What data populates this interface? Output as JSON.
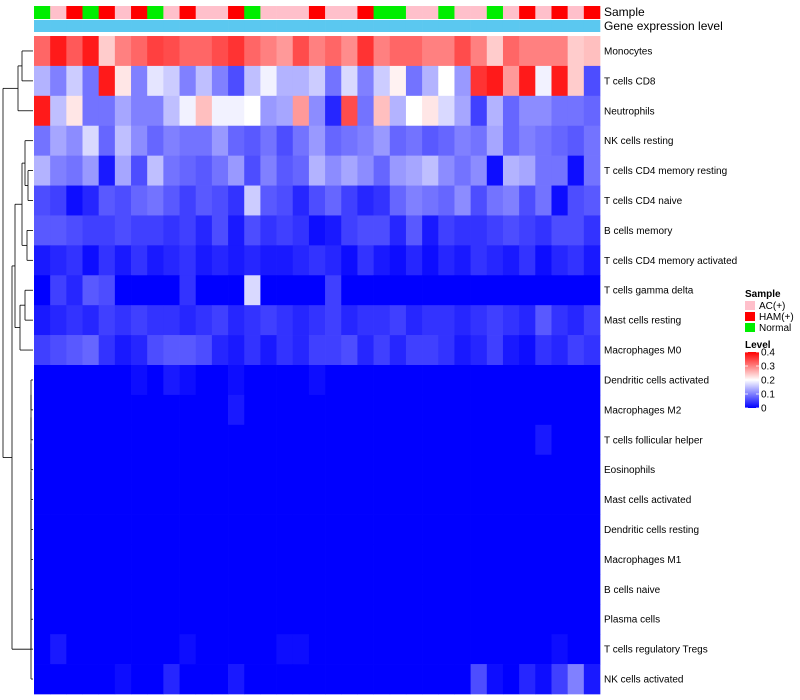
{
  "chart_data": {
    "type": "heatmap",
    "title": "",
    "column_annotations": {
      "sample_label": "Sample",
      "expression_label": "Gene expression level",
      "samples": [
        "Normal",
        "AC(+)",
        "HAM(+)",
        "Normal",
        "HAM(+)",
        "AC(+)",
        "HAM(+)",
        "Normal",
        "AC(+)",
        "HAM(+)",
        "AC(+)",
        "AC(+)",
        "HAM(+)",
        "Normal",
        "AC(+)",
        "AC(+)",
        "AC(+)",
        "HAM(+)",
        "AC(+)",
        "AC(+)",
        "HAM(+)",
        "Normal",
        "Normal",
        "AC(+)",
        "AC(+)",
        "Normal",
        "AC(+)",
        "AC(+)",
        "Normal",
        "AC(+)",
        "HAM(+)",
        "AC(+)",
        "HAM(+)",
        "AC(+)",
        "HAM(+)"
      ],
      "expression_color": "#5BC8F0"
    },
    "rows": [
      "Monocytes",
      "T cells CD8",
      "Neutrophils",
      "NK cells resting",
      "T cells CD4 memory resting",
      "T cells CD4 naive",
      "B cells memory",
      "T cells CD4 memory activated",
      "T cells gamma delta",
      "Mast cells resting",
      "Macrophages M0",
      "Dendritic cells activated",
      "Macrophages M2",
      "T cells follicular helper",
      "Eosinophils",
      "Mast cells activated",
      "Dendritic cells resting",
      "Macrophages M1",
      "B cells naive",
      "Plasma cells",
      "T cells regulatory  Tregs",
      "NK cells activated"
    ],
    "values": [
      [
        0.32,
        0.38,
        0.33,
        0.38,
        0.24,
        0.3,
        0.32,
        0.35,
        0.34,
        0.32,
        0.32,
        0.34,
        0.36,
        0.32,
        0.3,
        0.28,
        0.34,
        0.3,
        0.32,
        0.29,
        0.36,
        0.3,
        0.32,
        0.32,
        0.3,
        0.3,
        0.34,
        0.3,
        0.24,
        0.32,
        0.3,
        0.3,
        0.3,
        0.24,
        0.25
      ],
      [
        0.14,
        0.1,
        0.16,
        0.09,
        0.38,
        0.22,
        0.1,
        0.18,
        0.16,
        0.1,
        0.15,
        0.1,
        0.06,
        0.15,
        0.19,
        0.14,
        0.14,
        0.16,
        0.09,
        0.17,
        0.1,
        0.16,
        0.21,
        0.09,
        0.14,
        0.2,
        0.12,
        0.36,
        0.38,
        0.28,
        0.38,
        0.19,
        0.38,
        0.24,
        0.06
      ],
      [
        0.38,
        0.15,
        0.22,
        0.09,
        0.09,
        0.13,
        0.1,
        0.1,
        0.15,
        0.19,
        0.25,
        0.19,
        0.19,
        0.2,
        0.12,
        0.13,
        0.28,
        0.11,
        0.03,
        0.34,
        0.09,
        0.25,
        0.14,
        0.2,
        0.22,
        0.17,
        0.13,
        0.05,
        0.14,
        0.08,
        0.11,
        0.11,
        0.09,
        0.09,
        0.08
      ],
      [
        0.09,
        0.13,
        0.11,
        0.17,
        0.08,
        0.15,
        0.11,
        0.08,
        0.1,
        0.09,
        0.09,
        0.12,
        0.08,
        0.07,
        0.09,
        0.06,
        0.09,
        0.12,
        0.08,
        0.09,
        0.1,
        0.12,
        0.08,
        0.09,
        0.07,
        0.08,
        0.1,
        0.09,
        0.13,
        0.08,
        0.1,
        0.09,
        0.08,
        0.07,
        0.09
      ],
      [
        0.14,
        0.1,
        0.09,
        0.12,
        0.02,
        0.13,
        0.06,
        0.15,
        0.09,
        0.08,
        0.07,
        0.09,
        0.12,
        0.06,
        0.1,
        0.07,
        0.08,
        0.14,
        0.11,
        0.13,
        0.11,
        0.08,
        0.12,
        0.13,
        0.15,
        0.11,
        0.09,
        0.11,
        0.01,
        0.14,
        0.13,
        0.09,
        0.09,
        0.01,
        0.09
      ],
      [
        0.06,
        0.05,
        0.01,
        0.03,
        0.07,
        0.06,
        0.08,
        0.09,
        0.07,
        0.05,
        0.07,
        0.06,
        0.04,
        0.16,
        0.07,
        0.06,
        0.03,
        0.06,
        0.08,
        0.05,
        0.03,
        0.04,
        0.08,
        0.1,
        0.09,
        0.08,
        0.11,
        0.06,
        0.09,
        0.1,
        0.06,
        0.09,
        0.01,
        0.06,
        0.07
      ],
      [
        0.07,
        0.07,
        0.06,
        0.05,
        0.05,
        0.06,
        0.05,
        0.05,
        0.04,
        0.05,
        0.03,
        0.06,
        0.02,
        0.06,
        0.04,
        0.05,
        0.04,
        0.01,
        0.02,
        0.05,
        0.06,
        0.06,
        0.03,
        0.07,
        0.02,
        0.05,
        0.04,
        0.04,
        0.05,
        0.06,
        0.05,
        0.04,
        0.06,
        0.06,
        0.04
      ],
      [
        0.02,
        0.03,
        0.04,
        0.01,
        0.04,
        0.02,
        0.04,
        0.02,
        0.03,
        0.04,
        0.02,
        0.03,
        0.02,
        0.03,
        0.02,
        0.02,
        0.03,
        0.04,
        0.03,
        0.01,
        0.04,
        0.02,
        0.01,
        0.03,
        0.01,
        0.03,
        0.02,
        0.04,
        0.03,
        0.02,
        0.04,
        0.01,
        0.03,
        0.04,
        0.02
      ],
      [
        0.0,
        0.05,
        0.03,
        0.07,
        0.06,
        0.0,
        0.0,
        0.0,
        0.0,
        0.04,
        0.0,
        0.0,
        0.0,
        0.17,
        0.0,
        0.0,
        0.0,
        0.0,
        0.05,
        0.0,
        0.0,
        0.0,
        0.0,
        0.0,
        0.0,
        0.0,
        0.0,
        0.0,
        0.0,
        0.0,
        0.0,
        0.0,
        0.0,
        0.0,
        0.0
      ],
      [
        0.02,
        0.03,
        0.04,
        0.03,
        0.05,
        0.04,
        0.05,
        0.04,
        0.04,
        0.03,
        0.04,
        0.05,
        0.03,
        0.04,
        0.05,
        0.04,
        0.03,
        0.04,
        0.05,
        0.03,
        0.04,
        0.04,
        0.05,
        0.03,
        0.04,
        0.04,
        0.03,
        0.04,
        0.05,
        0.04,
        0.03,
        0.07,
        0.04,
        0.03,
        0.05
      ],
      [
        0.05,
        0.06,
        0.07,
        0.08,
        0.04,
        0.02,
        0.03,
        0.06,
        0.07,
        0.07,
        0.06,
        0.03,
        0.02,
        0.04,
        0.02,
        0.04,
        0.03,
        0.05,
        0.05,
        0.06,
        0.03,
        0.05,
        0.03,
        0.05,
        0.05,
        0.04,
        0.02,
        0.03,
        0.05,
        0.02,
        0.01,
        0.04,
        0.03,
        0.05,
        0.04
      ],
      [
        0.0,
        0.0,
        0.0,
        0.0,
        0.0,
        0.0,
        0.01,
        0.0,
        0.02,
        0.01,
        0.0,
        0.0,
        0.01,
        0.0,
        0.0,
        0.0,
        0.0,
        0.01,
        0.0,
        0.0,
        0.0,
        0.0,
        0.0,
        0.0,
        0.0,
        0.0,
        0.0,
        0.0,
        0.0,
        0.0,
        0.0,
        0.0,
        0.0,
        0.0,
        0.0
      ],
      [
        0.0,
        0.0,
        0.0,
        0.0,
        0.0,
        0.0,
        0.0,
        0.0,
        0.0,
        0.0,
        0.0,
        0.0,
        0.02,
        0.0,
        0.0,
        0.0,
        0.0,
        0.0,
        0.0,
        0.0,
        0.0,
        0.0,
        0.0,
        0.0,
        0.0,
        0.0,
        0.0,
        0.0,
        0.0,
        0.0,
        0.0,
        0.0,
        0.0,
        0.0,
        0.0
      ],
      [
        0.0,
        0.0,
        0.0,
        0.0,
        0.0,
        0.0,
        0.0,
        0.0,
        0.0,
        0.0,
        0.0,
        0.0,
        0.0,
        0.0,
        0.0,
        0.0,
        0.0,
        0.0,
        0.0,
        0.0,
        0.0,
        0.0,
        0.0,
        0.0,
        0.0,
        0.0,
        0.0,
        0.0,
        0.0,
        0.0,
        0.0,
        0.02,
        0.0,
        0.0,
        0.0
      ],
      [
        0.0,
        0.0,
        0.0,
        0.0,
        0.0,
        0.0,
        0.0,
        0.0,
        0.0,
        0.0,
        0.0,
        0.0,
        0.0,
        0.0,
        0.0,
        0.0,
        0.0,
        0.0,
        0.0,
        0.0,
        0.0,
        0.0,
        0.0,
        0.0,
        0.0,
        0.0,
        0.0,
        0.0,
        0.0,
        0.0,
        0.0,
        0.0,
        0.0,
        0.0,
        0.0
      ],
      [
        0.0,
        0.0,
        0.0,
        0.0,
        0.0,
        0.0,
        0.0,
        0.0,
        0.0,
        0.0,
        0.0,
        0.0,
        0.0,
        0.0,
        0.0,
        0.0,
        0.0,
        0.0,
        0.0,
        0.0,
        0.0,
        0.0,
        0.0,
        0.0,
        0.0,
        0.0,
        0.0,
        0.0,
        0.0,
        0.0,
        0.0,
        0.0,
        0.0,
        0.0,
        0.0
      ],
      [
        0.0,
        0.0,
        0.0,
        0.0,
        0.0,
        0.0,
        0.0,
        0.0,
        0.0,
        0.0,
        0.0,
        0.0,
        0.0,
        0.0,
        0.0,
        0.0,
        0.0,
        0.0,
        0.0,
        0.0,
        0.0,
        0.0,
        0.0,
        0.0,
        0.0,
        0.0,
        0.0,
        0.0,
        0.0,
        0.0,
        0.0,
        0.0,
        0.0,
        0.0,
        0.0
      ],
      [
        0.0,
        0.0,
        0.0,
        0.0,
        0.0,
        0.0,
        0.0,
        0.0,
        0.0,
        0.0,
        0.0,
        0.0,
        0.0,
        0.0,
        0.0,
        0.0,
        0.0,
        0.0,
        0.0,
        0.0,
        0.0,
        0.0,
        0.0,
        0.0,
        0.0,
        0.0,
        0.0,
        0.0,
        0.0,
        0.0,
        0.0,
        0.0,
        0.0,
        0.0,
        0.0
      ],
      [
        0.0,
        0.0,
        0.0,
        0.0,
        0.0,
        0.0,
        0.0,
        0.0,
        0.0,
        0.0,
        0.0,
        0.0,
        0.0,
        0.0,
        0.0,
        0.0,
        0.0,
        0.0,
        0.0,
        0.0,
        0.0,
        0.0,
        0.0,
        0.0,
        0.0,
        0.0,
        0.0,
        0.0,
        0.0,
        0.0,
        0.0,
        0.0,
        0.0,
        0.0,
        0.0
      ],
      [
        0.0,
        0.0,
        0.0,
        0.0,
        0.0,
        0.0,
        0.0,
        0.0,
        0.0,
        0.0,
        0.0,
        0.0,
        0.0,
        0.0,
        0.0,
        0.0,
        0.0,
        0.0,
        0.0,
        0.0,
        0.0,
        0.0,
        0.0,
        0.0,
        0.0,
        0.0,
        0.0,
        0.0,
        0.0,
        0.0,
        0.0,
        0.0,
        0.0,
        0.0,
        0.0
      ],
      [
        0.0,
        0.02,
        0.0,
        0.0,
        0.0,
        0.0,
        0.0,
        0.0,
        0.0,
        0.01,
        0.0,
        0.0,
        0.0,
        0.0,
        0.0,
        0.01,
        0.01,
        0.0,
        0.0,
        0.0,
        0.0,
        0.0,
        0.0,
        0.0,
        0.0,
        0.0,
        0.0,
        0.0,
        0.0,
        0.0,
        0.0,
        0.0,
        0.01,
        0.0,
        0.0
      ],
      [
        0.0,
        0.0,
        0.0,
        0.0,
        0.0,
        0.01,
        0.0,
        0.0,
        0.03,
        0.0,
        0.0,
        0.0,
        0.02,
        0.0,
        0.0,
        0.0,
        0.0,
        0.0,
        0.0,
        0.0,
        0.0,
        0.0,
        0.0,
        0.0,
        0.0,
        0.0,
        0.0,
        0.06,
        0.01,
        0.0,
        0.03,
        0.01,
        0.05,
        0.1,
        0.02
      ]
    ],
    "color_scale": {
      "min": 0,
      "max": 0.4,
      "low_color": "#0000FF",
      "mid_color": "#FFFFFF",
      "high_color": "#FF0000",
      "mid_value": 0.2
    },
    "sample_colors": {
      "AC(+)": "#FFC0CB",
      "HAM(+)": "#FF0000",
      "Normal": "#00EE00"
    },
    "legend": {
      "sample_title": "Sample",
      "sample_entries": [
        "AC(+)",
        "HAM(+)",
        "Normal"
      ],
      "level_title": "Level",
      "level_ticks": [
        "0.4",
        "0.3",
        "0.2",
        "0.1",
        "0"
      ],
      "level_tick_values": [
        0.4,
        0.3,
        0.2,
        0.1,
        0
      ]
    },
    "dendrogram": {
      "side": "left",
      "clusters": "rows"
    }
  }
}
